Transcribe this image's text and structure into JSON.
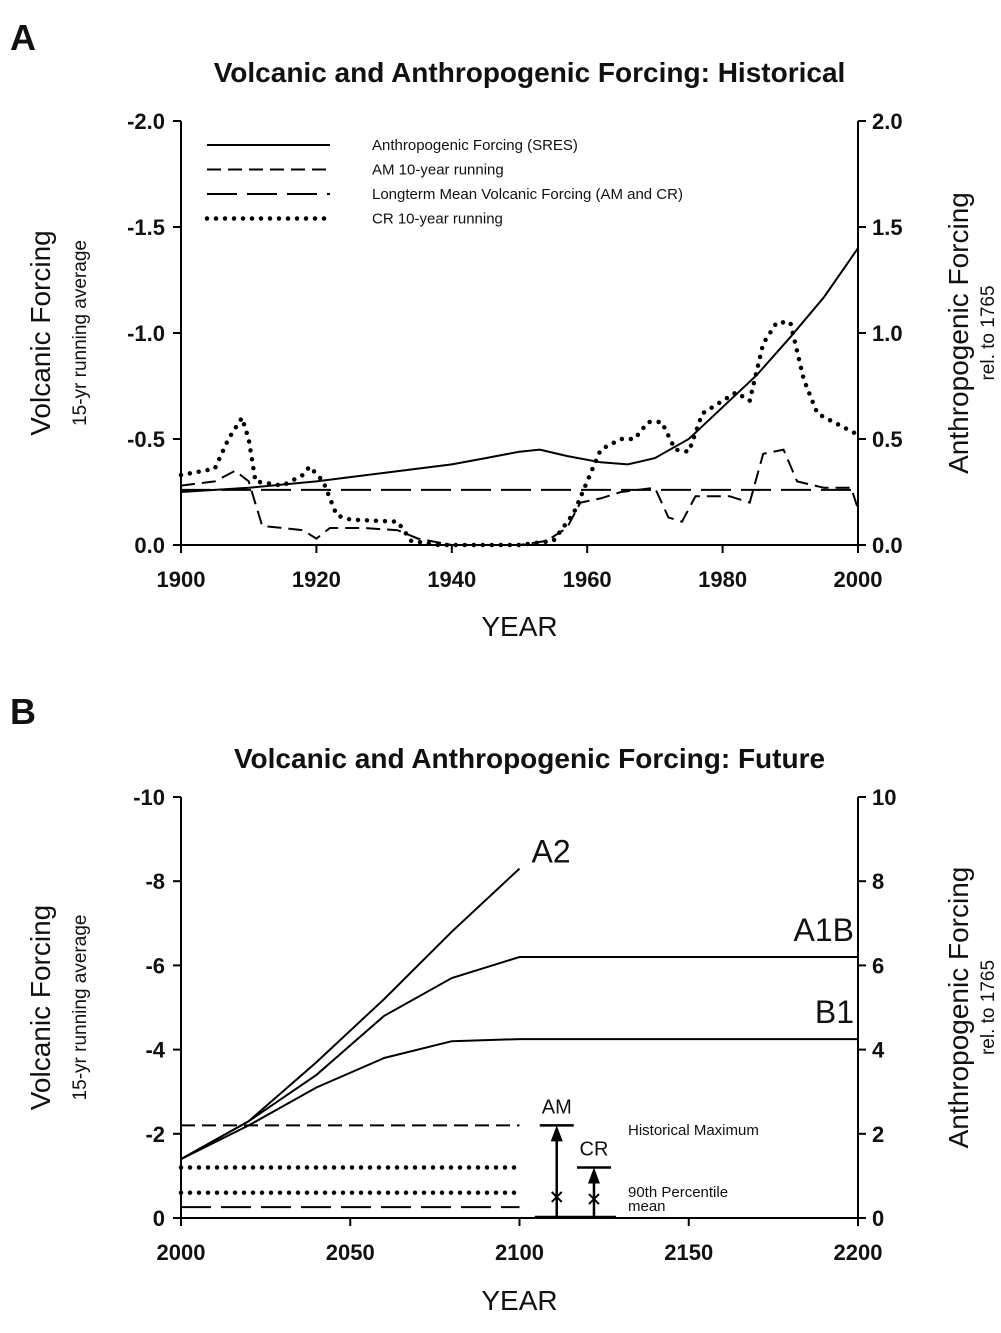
{
  "chart_data": [
    {
      "type": "line",
      "panel": "A",
      "title": "Volcanic and Anthropogenic Forcing: Historical",
      "xlabel": "YEAR",
      "ylabel": "Volcanic Forcing",
      "ylabel_sub": "15-yr running average",
      "y2label": "Anthropogenic Forcing",
      "y2label_sub": "rel. to 1765",
      "xlim": [
        1900,
        2000
      ],
      "xticks": [
        1900,
        1920,
        1940,
        1960,
        1980,
        2000
      ],
      "ylim": [
        0,
        -2
      ],
      "yticks": [
        {
          "value": -2,
          "label": "-2.0"
        },
        {
          "value": -1.5,
          "label": "-1.5"
        },
        {
          "value": -1,
          "label": "-1.0"
        },
        {
          "value": -0.5,
          "label": "-0.5"
        },
        {
          "value": 0,
          "label": "0.0"
        }
      ],
      "y2lim": [
        0,
        2
      ],
      "y2ticks": [
        {
          "value": 2,
          "label": "2.0"
        },
        {
          "value": 1.5,
          "label": "1.5"
        },
        {
          "value": 1,
          "label": "1.0"
        },
        {
          "value": 0.5,
          "label": "0.5"
        },
        {
          "value": 0,
          "label": "0.0"
        }
      ],
      "series": [
        {
          "name": "Anthropogenic Forcing (SRES)",
          "style": "solid",
          "axis": "y2",
          "x": [
            1900,
            1910,
            1920,
            1930,
            1940,
            1945,
            1950,
            1953,
            1957,
            1962,
            1966,
            1970,
            1975,
            1980,
            1985,
            1990,
            1995,
            2000
          ],
          "values": [
            0.25,
            0.27,
            0.3,
            0.34,
            0.38,
            0.41,
            0.44,
            0.45,
            0.42,
            0.39,
            0.38,
            0.41,
            0.5,
            0.65,
            0.8,
            0.98,
            1.17,
            1.4
          ]
        },
        {
          "name": "AM 10-year running",
          "style": "dash",
          "x": [
            1900,
            1905,
            1908,
            1910,
            1912,
            1918,
            1920,
            1922,
            1927,
            1932,
            1935,
            1940,
            1950,
            1954,
            1957,
            1959,
            1962,
            1965,
            1970,
            1972,
            1974,
            1976,
            1981,
            1984,
            1986,
            1989,
            1991,
            1995,
            1999,
            2000
          ],
          "values": [
            -0.28,
            -0.3,
            -0.35,
            -0.3,
            -0.09,
            -0.07,
            -0.03,
            -0.08,
            -0.08,
            -0.07,
            -0.03,
            0,
            0,
            -0.02,
            -0.08,
            -0.2,
            -0.22,
            -0.25,
            -0.27,
            -0.13,
            -0.11,
            -0.23,
            -0.23,
            -0.2,
            -0.43,
            -0.45,
            -0.3,
            -0.27,
            -0.27,
            -0.17
          ]
        },
        {
          "name": "Longterm Mean Volcanic Forcing (AM and CR)",
          "style": "longdash",
          "x": [
            1900,
            2000
          ],
          "values": [
            -0.26,
            -0.26
          ]
        },
        {
          "name": "CR 10-year running",
          "style": "dot",
          "x": [
            1900,
            1905,
            1907,
            1909,
            1910,
            1911,
            1915,
            1918,
            1919,
            1921,
            1923,
            1925,
            1932,
            1934,
            1938,
            1950,
            1955,
            1958,
            1960,
            1962,
            1965,
            1967,
            1969,
            1971,
            1973,
            1975,
            1977,
            1980,
            1982,
            1984,
            1986,
            1988,
            1990,
            1992,
            1994,
            1997,
            2000
          ],
          "values": [
            -0.33,
            -0.36,
            -0.5,
            -0.6,
            -0.5,
            -0.3,
            -0.28,
            -0.33,
            -0.37,
            -0.3,
            -0.14,
            -0.12,
            -0.11,
            -0.02,
            0,
            0,
            -0.02,
            -0.15,
            -0.3,
            -0.45,
            -0.5,
            -0.5,
            -0.58,
            -0.58,
            -0.45,
            -0.44,
            -0.62,
            -0.68,
            -0.72,
            -0.68,
            -0.95,
            -1.05,
            -1.05,
            -0.78,
            -0.62,
            -0.57,
            -0.52
          ]
        }
      ]
    },
    {
      "type": "line",
      "panel": "B",
      "title": "Volcanic and Anthropogenic Forcing: Future",
      "xlabel": "YEAR",
      "ylabel": "Volcanic Forcing",
      "ylabel_sub": "15-yr running average",
      "y2label": "Anthropogenic Forcing",
      "y2label_sub": "rel. to 1765",
      "xlim": [
        2000,
        2200
      ],
      "xticks": [
        2000,
        2050,
        2100,
        2150,
        2200
      ],
      "ylim": [
        0,
        -10
      ],
      "yticks": [
        -10,
        -8,
        -6,
        -4,
        -2,
        0
      ],
      "y2lim": [
        0,
        10
      ],
      "y2ticks": [
        10,
        8,
        6,
        4,
        2,
        0
      ],
      "series": [
        {
          "label": "A2",
          "style": "solid",
          "axis": "y2",
          "x": [
            2000,
            2020,
            2040,
            2060,
            2080,
            2100
          ],
          "values": [
            1.4,
            2.3,
            3.7,
            5.2,
            6.8,
            8.3
          ]
        },
        {
          "label": "A1B",
          "style": "solid",
          "axis": "y2",
          "x": [
            2000,
            2020,
            2040,
            2060,
            2080,
            2100,
            2200
          ],
          "values": [
            1.4,
            2.3,
            3.4,
            4.8,
            5.7,
            6.2,
            6.2
          ]
        },
        {
          "label": "B1",
          "style": "solid",
          "axis": "y2",
          "x": [
            2000,
            2020,
            2040,
            2060,
            2080,
            2100,
            2200
          ],
          "values": [
            1.4,
            2.2,
            3.1,
            3.8,
            4.2,
            4.25,
            4.25
          ]
        },
        {
          "style": "dash",
          "x": [
            2000,
            2100
          ],
          "values": [
            -2.2,
            -2.2
          ]
        },
        {
          "style": "dot",
          "x": [
            2000,
            2100
          ],
          "values": [
            -1.2,
            -1.2
          ]
        },
        {
          "style": "dot",
          "x": [
            2000,
            2100
          ],
          "values": [
            -0.6,
            -0.6
          ]
        },
        {
          "style": "longdash",
          "x": [
            2000,
            2100
          ],
          "values": [
            -0.26,
            -0.26
          ]
        }
      ],
      "markers": [
        {
          "label": "AM",
          "x": 2111,
          "top": -2.2,
          "cross": -0.5
        },
        {
          "label": "CR",
          "x": 2122,
          "top": -1.2,
          "cross": -0.45
        }
      ],
      "annotations": [
        "Historical Maximum",
        "90th Percentile",
        "mean"
      ]
    }
  ]
}
